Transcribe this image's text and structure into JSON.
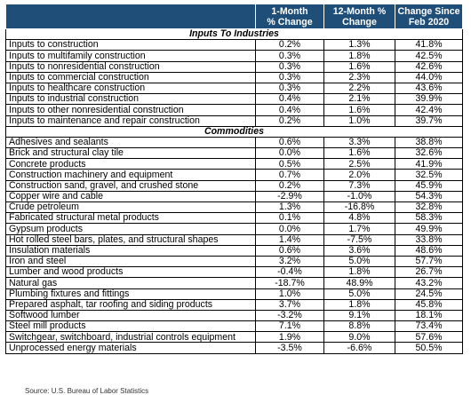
{
  "headers": [
    "",
    "1-Month\n% Change",
    "12-Month %\nChange",
    "Change Since\nFeb 2020"
  ],
  "sections": [
    {
      "title": "Inputs To Industries",
      "rows": [
        [
          "Inputs to construction",
          "0.2%",
          "1.3%",
          "41.8%"
        ],
        [
          "Inputs to multifamily construction",
          "0.3%",
          "1.8%",
          "42.5%"
        ],
        [
          "Inputs to nonresidential construction",
          "0.3%",
          "1.6%",
          "42.6%"
        ],
        [
          "Inputs to commercial construction",
          "0.3%",
          "2.3%",
          "44.0%"
        ],
        [
          "Inputs to healthcare construction",
          "0.3%",
          "2.2%",
          "43.6%"
        ],
        [
          "Inputs to industrial construction",
          "0.4%",
          "2.1%",
          "39.9%"
        ],
        [
          "Inputs to other nonresidential construction",
          "0.4%",
          "1.6%",
          "42.4%"
        ],
        [
          "Inputs to maintenance and repair construction",
          "0.2%",
          "1.0%",
          "39.7%"
        ]
      ]
    },
    {
      "title": "Commodities",
      "rows": [
        [
          "Adhesives and sealants",
          "0.6%",
          "3.3%",
          "38.8%"
        ],
        [
          "Brick and structural clay tile",
          "0.0%",
          "1.6%",
          "32.6%"
        ],
        [
          "Concrete products",
          "0.5%",
          "2.5%",
          "41.9%"
        ],
        [
          "Construction machinery and equipment",
          "0.7%",
          "2.0%",
          "32.5%"
        ],
        [
          "Construction sand, gravel, and crushed stone",
          "0.2%",
          "7.3%",
          "45.9%"
        ],
        [
          "Copper wire and cable",
          "-2.9%",
          "-1.0%",
          "54.3%"
        ],
        [
          "Crude petroleum",
          "1.3%",
          "-16.8%",
          "32.8%"
        ],
        [
          "Fabricated structural metal products",
          "0.1%",
          "4.8%",
          "58.3%"
        ],
        [
          "Gypsum products",
          "0.0%",
          "1.7%",
          "49.9%"
        ],
        [
          "Hot rolled steel bars, plates, and structural shapes",
          "1.4%",
          "-7.5%",
          "33.8%"
        ],
        [
          "Insulation materials",
          "0.6%",
          "3.6%",
          "48.6%"
        ],
        [
          "Iron and steel",
          "3.2%",
          "5.0%",
          "57.7%"
        ],
        [
          "Lumber and wood products",
          "-0.4%",
          "1.8%",
          "26.7%"
        ],
        [
          "Natural gas",
          "-18.7%",
          "48.9%",
          "43.2%"
        ],
        [
          "Plumbing fixtures and fittings",
          "1.0%",
          "5.0%",
          "24.5%"
        ],
        [
          "Prepared asphalt, tar roofing and siding products",
          "3.7%",
          "1.8%",
          "45.8%"
        ],
        [
          "Softwood lumber",
          "-3.2%",
          "9.1%",
          "18.1%"
        ],
        [
          "Steel mill products",
          "7.1%",
          "8.8%",
          "73.4%"
        ],
        [
          "Switchgear, switchboard, industrial controls equipment",
          "1.9%",
          "9.0%",
          "57.6%"
        ],
        [
          "Unprocessed energy materials",
          "-3.5%",
          "-6.6%",
          "50.5%"
        ]
      ]
    }
  ],
  "source": "Source: U.S. Bureau of Labor Statistics"
}
